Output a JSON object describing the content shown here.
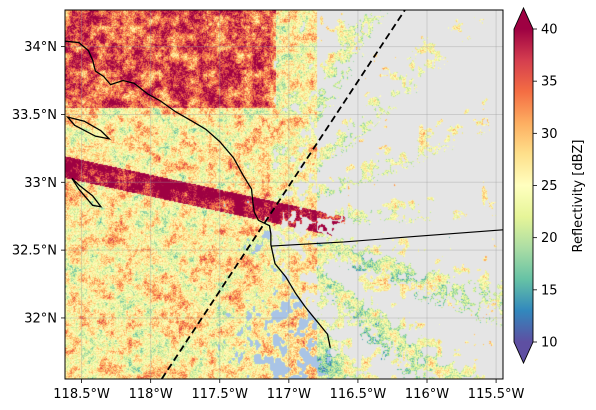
{
  "map": {
    "projection": "PlateCarree",
    "extent": {
      "lon_min": -118.62,
      "lon_max": -115.45,
      "lat_min": 31.55,
      "lat_max": 34.27
    },
    "x_ticks": [
      {
        "lon": -118.5,
        "label": "118.5°W"
      },
      {
        "lon": -118.0,
        "label": "118°W"
      },
      {
        "lon": -117.5,
        "label": "117.5°W"
      },
      {
        "lon": -117.0,
        "label": "117°W"
      },
      {
        "lon": -116.5,
        "label": "116.5°W"
      },
      {
        "lon": -116.0,
        "label": "116°W"
      },
      {
        "lon": -115.5,
        "label": "115.5°W"
      }
    ],
    "y_ticks": [
      {
        "lat": 34.0,
        "label": "34°N"
      },
      {
        "lat": 33.5,
        "label": "33.5°N"
      },
      {
        "lat": 33.0,
        "label": "33°N"
      },
      {
        "lat": 32.5,
        "label": "32.5°N"
      },
      {
        "lat": 32.0,
        "label": "32°N"
      }
    ],
    "grid": true,
    "background_color": "#e5e5e5",
    "ocean_color": "#a9c4e6",
    "radar_center": {
      "lon": -117.25,
      "lat": 32.75
    },
    "scan_line": {
      "style": "dashed",
      "points": [
        {
          "lon": -117.92,
          "lat": 31.55
        },
        {
          "lon": -116.16,
          "lat": 34.27
        }
      ]
    },
    "coastline": [
      [
        -118.62,
        34.04
      ],
      [
        -118.52,
        34.03
      ],
      [
        -118.45,
        33.97
      ],
      [
        -118.42,
        33.9
      ],
      [
        -118.4,
        33.82
      ],
      [
        -118.34,
        33.78
      ],
      [
        -118.29,
        33.72
      ],
      [
        -118.2,
        33.75
      ],
      [
        -118.12,
        33.73
      ],
      [
        -118.02,
        33.65
      ],
      [
        -117.93,
        33.6
      ],
      [
        -117.82,
        33.52
      ],
      [
        -117.7,
        33.45
      ],
      [
        -117.6,
        33.39
      ],
      [
        -117.5,
        33.3
      ],
      [
        -117.4,
        33.18
      ],
      [
        -117.33,
        33.05
      ],
      [
        -117.27,
        32.95
      ],
      [
        -117.26,
        32.85
      ],
      [
        -117.25,
        32.78
      ],
      [
        -117.22,
        32.72
      ],
      [
        -117.14,
        32.68
      ],
      [
        -117.13,
        32.62
      ],
      [
        -117.13,
        32.54
      ],
      [
        -117.1,
        32.4
      ],
      [
        -117.02,
        32.3
      ],
      [
        -116.95,
        32.18
      ],
      [
        -116.88,
        32.08
      ],
      [
        -116.8,
        31.98
      ],
      [
        -116.72,
        31.88
      ],
      [
        -116.7,
        31.78
      ]
    ],
    "border": [
      [
        -117.13,
        32.53
      ],
      [
        -116.6,
        32.56
      ],
      [
        -116.1,
        32.6
      ],
      [
        -115.45,
        32.65
      ]
    ],
    "islands": [
      [
        [
          -118.6,
          33.48
        ],
        [
          -118.48,
          33.45
        ],
        [
          -118.36,
          33.38
        ],
        [
          -118.3,
          33.32
        ],
        [
          -118.4,
          33.34
        ],
        [
          -118.55,
          33.42
        ],
        [
          -118.6,
          33.48
        ]
      ],
      [
        [
          -118.57,
          33.03
        ],
        [
          -118.52,
          32.95
        ],
        [
          -118.42,
          32.83
        ],
        [
          -118.36,
          32.82
        ],
        [
          -118.42,
          32.9
        ],
        [
          -118.52,
          32.98
        ],
        [
          -118.57,
          33.03
        ]
      ]
    ]
  },
  "colorbar": {
    "label": "Reflectivity [dBZ]",
    "min": 10,
    "max": 40,
    "ticks": [
      10,
      15,
      20,
      25,
      30,
      35,
      40
    ],
    "colormap": "Spectral_r",
    "extend": "both",
    "colors": [
      "#5e4fa2",
      "#3288bd",
      "#66c2a5",
      "#abdda4",
      "#e6f598",
      "#ffffbf",
      "#fee08b",
      "#fdae61",
      "#f46d43",
      "#d53e4f",
      "#9e0142"
    ]
  }
}
